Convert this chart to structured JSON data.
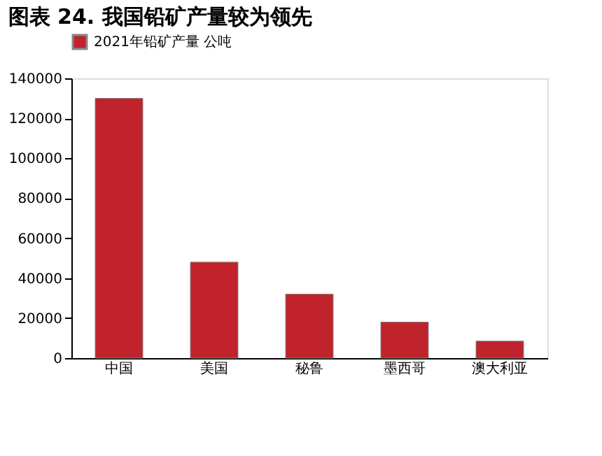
{
  "chart_data": {
    "type": "bar",
    "title": "图表 24. 我国铅矿产量较为领先",
    "categories": [
      "中国",
      "美国",
      "秘鲁",
      "墨西哥",
      "澳大利亚"
    ],
    "series": [
      {
        "name": "2021年铅矿产量 公吨",
        "color": "#c0232c",
        "values": [
          130000,
          48000,
          32000,
          18000,
          8500
        ]
      }
    ],
    "ylim": [
      0,
      140000
    ],
    "yticks": [
      0,
      20000,
      40000,
      60000,
      80000,
      100000,
      120000,
      140000
    ],
    "grid": false,
    "legend": "top"
  }
}
